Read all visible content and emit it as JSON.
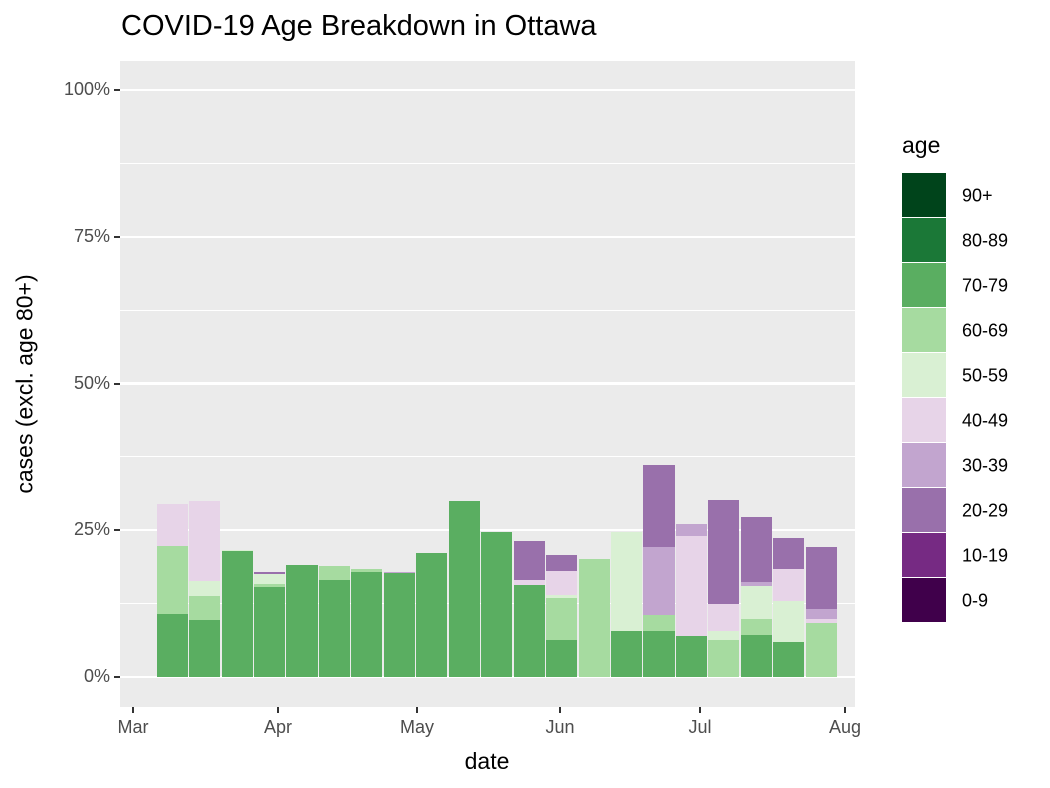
{
  "chart_data": {
    "type": "bar",
    "subtype": "stacked-100-percent",
    "title": "COVID-19 Age Breakdown in Ottawa",
    "xlabel": "date",
    "ylabel": "cases (excl. age 80+)",
    "legend_title": "age",
    "legend_position": "right",
    "grid": true,
    "panel_background": "#ebebeb",
    "gridline_color": "#ffffff",
    "tick_label_color": "#4d4d4d",
    "ylim": [
      0,
      100
    ],
    "ytick_values": [
      0,
      25,
      50,
      75,
      100
    ],
    "ytick_labels": [
      "0%",
      "25%",
      "50%",
      "75%",
      "100%"
    ],
    "yminor_values": [
      12.5,
      37.5,
      62.5,
      87.5
    ],
    "xtick_labels": [
      "Mar",
      "Apr",
      "May",
      "Jun",
      "Jul",
      "Aug"
    ],
    "weeks": [
      "Mar 08",
      "Mar 15",
      "Mar 22",
      "Mar 29",
      "Apr 05",
      "Apr 12",
      "Apr 19",
      "Apr 26",
      "May 03",
      "May 10",
      "May 17",
      "May 24",
      "May 31",
      "Jun 07",
      "Jun 14",
      "Jun 21",
      "Jun 28",
      "Jul 05",
      "Jul 12",
      "Jul 19",
      "Jul 26"
    ],
    "legend_entries": [
      {
        "label": "90+",
        "color": "#00441b"
      },
      {
        "label": "80-89",
        "color": "#1b7837"
      },
      {
        "label": "70-79",
        "color": "#5aae61"
      },
      {
        "label": "60-69",
        "color": "#a6dba0"
      },
      {
        "label": "50-59",
        "color": "#d9f0d3"
      },
      {
        "label": "40-49",
        "color": "#e7d4e8"
      },
      {
        "label": "30-39",
        "color": "#c2a5cf"
      },
      {
        "label": "20-29",
        "color": "#9970ab"
      },
      {
        "label": "10-19",
        "color": "#762a83"
      },
      {
        "label": "0-9",
        "color": "#40004b"
      }
    ],
    "series": [
      {
        "name": "0-9",
        "color": "#40004b",
        "values": [
          0,
          0,
          0.8,
          0.6,
          2.7,
          3.2,
          2.3,
          2.5,
          5.7,
          1.6,
          0.8,
          8.3,
          4.4,
          0.6,
          9.8,
          5.1,
          5.0,
          4.3,
          6.3,
          8.3,
          21.5
        ]
      },
      {
        "name": "10-19",
        "color": "#762a83",
        "values": [
          3.7,
          1.5,
          1.1,
          3.7,
          5.1,
          5.8,
          3.4,
          4.8,
          5.6,
          4.4,
          5.6,
          9.9,
          4.9,
          17.9,
          0,
          9.1,
          9.9,
          27.1,
          8.3,
          19.8,
          19.8
        ]
      },
      {
        "name": "20-29",
        "color": "#9970ab",
        "values": [
          7.6,
          9.7,
          7.8,
          17.9,
          16.4,
          11.4,
          11.1,
          7.5,
          10.5,
          16.1,
          18.4,
          23.1,
          20.8,
          11.2,
          19.3,
          36.1,
          23.1,
          30.1,
          27.3,
          23.7,
          22.1
        ]
      },
      {
        "name": "30-39",
        "color": "#c2a5cf",
        "values": [
          7.3,
          19.0,
          12.6,
          15.5,
          11.3,
          10.7,
          11.4,
          17.9,
          8.9,
          6.0,
          13.2,
          15.8,
          18.1,
          19.2,
          14.2,
          22.2,
          26.0,
          11.8,
          16.1,
          9.3,
          11.5
        ]
      },
      {
        "name": "40-49",
        "color": "#e7d4e8",
        "values": [
          29.4,
          30.0,
          16.1,
          13.6,
          18.5,
          15.4,
          18.4,
          14.8,
          20.5,
          14.5,
          9.5,
          16.5,
          18.1,
          11.8,
          20.7,
          0,
          24.1,
          12.5,
          9.5,
          18.4,
          9.9
        ]
      },
      {
        "name": "50-59",
        "color": "#d9f0d3",
        "values": [
          19.0,
          16.3,
          21.7,
          17.6,
          17.6,
          18.0,
          17.1,
          17.4,
          16.5,
          19.8,
          12.9,
          6.3,
          13.9,
          19.2,
          24.7,
          9.0,
          5.0,
          7.9,
          15.5,
          12.9,
          6.0
        ]
      },
      {
        "name": "60-69",
        "color": "#a6dba0",
        "values": [
          22.3,
          13.8,
          18.4,
          15.8,
          9.4,
          18.9,
          18.4,
          17.3,
          11.2,
          7.6,
          14.9,
          4.4,
          13.5,
          20.1,
          3.5,
          10.6,
          0,
          6.3,
          9.9,
          1.7,
          9.2
        ]
      },
      {
        "name": "70-79",
        "color": "#5aae61",
        "values": [
          10.7,
          9.7,
          21.5,
          15.3,
          19.0,
          16.6,
          17.9,
          17.8,
          21.1,
          30.0,
          24.7,
          15.7,
          6.3,
          0,
          7.8,
          7.9,
          6.9,
          0,
          7.1,
          5.9,
          0
        ]
      }
    ]
  }
}
